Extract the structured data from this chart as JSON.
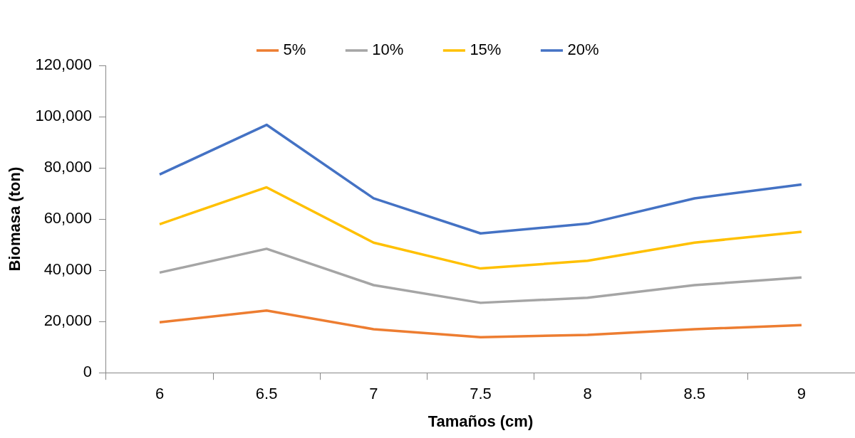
{
  "chart_data": {
    "type": "line",
    "xlabel": "Tamaños (cm)",
    "ylabel": "Biomasa (ton)",
    "categories": [
      "6",
      "6.5",
      "7",
      "7.5",
      "8",
      "8.5",
      "9"
    ],
    "series": [
      {
        "name": "5%",
        "color": "#ed7d31",
        "values": [
          19700,
          24300,
          17000,
          13900,
          14800,
          17000,
          18600
        ]
      },
      {
        "name": "10%",
        "color": "#a5a5a5",
        "values": [
          39100,
          48400,
          34200,
          27300,
          29300,
          34200,
          37200
        ]
      },
      {
        "name": "15%",
        "color": "#ffc000",
        "values": [
          58000,
          72400,
          50800,
          40700,
          43700,
          50800,
          55000
        ]
      },
      {
        "name": "20%",
        "color": "#4472c4",
        "values": [
          77400,
          96800,
          68100,
          54400,
          58200,
          68100,
          73500
        ]
      }
    ],
    "ylim": [
      0,
      120000
    ],
    "yticks": [
      0,
      {
        "value": 20000,
        "label": "20,000"
      },
      {
        "value": 40000,
        "label": "40,000"
      },
      {
        "value": 60000,
        "label": "60,000"
      },
      {
        "value": 80000,
        "label": "80,000"
      },
      {
        "value": 100000,
        "label": "100,000"
      },
      {
        "value": 120000,
        "label": "120,000"
      }
    ],
    "grid": false,
    "legend": "top",
    "marker": "none",
    "line_style": "solid"
  }
}
